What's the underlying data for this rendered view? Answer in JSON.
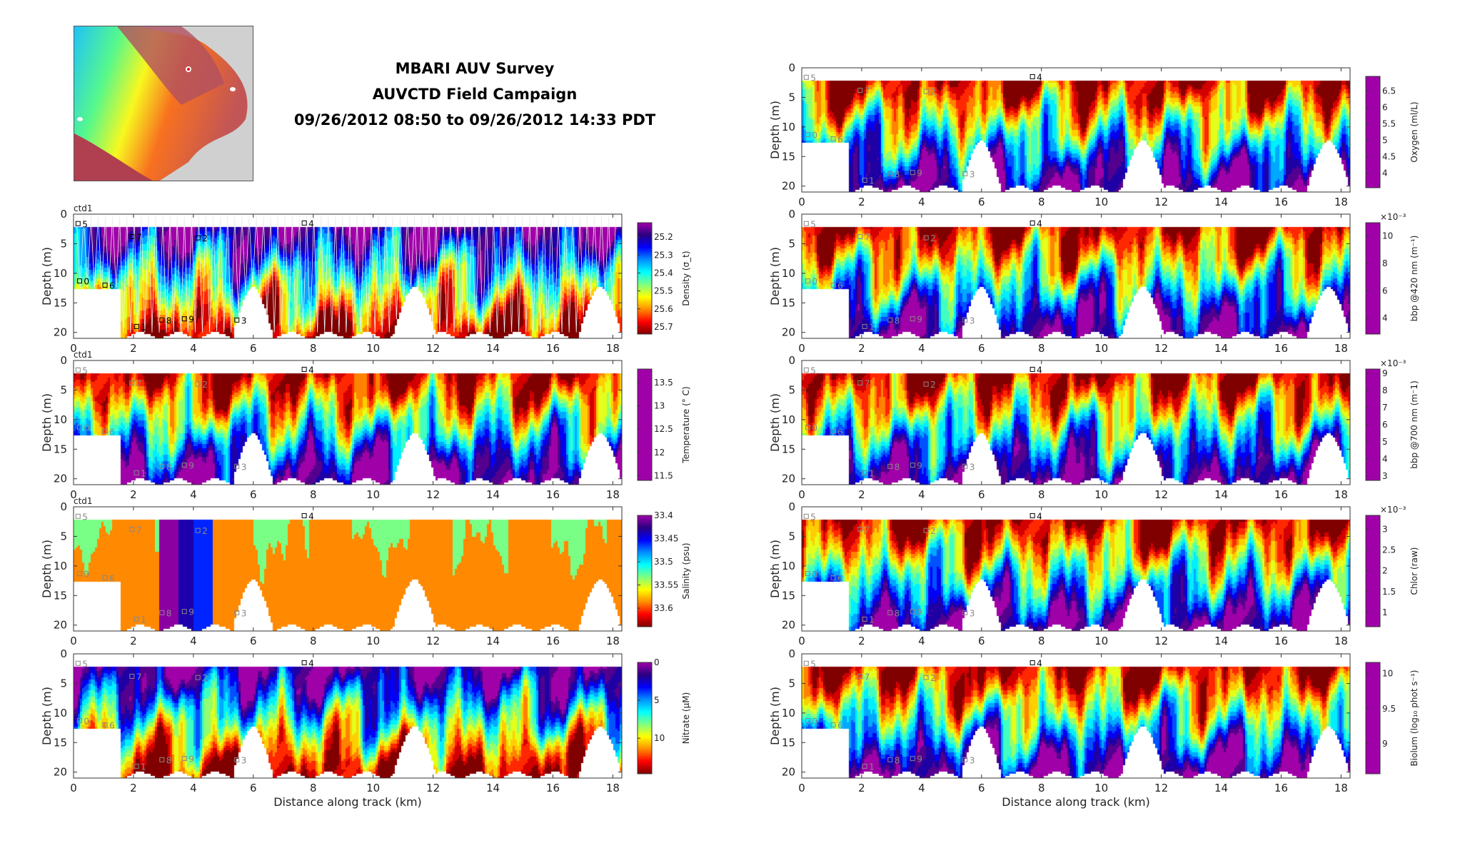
{
  "header": {
    "line1": "MBARI AUV Survey",
    "line2": "AUVCTD Field Campaign",
    "line3": "09/26/2012 08:50 to 09/26/2012 14:33 PDT"
  },
  "ctd_label": "ctd1",
  "chart_data": [
    {
      "id": "density",
      "type": "heatmap",
      "colorbar_label": "Density (σ_t)",
      "clim": [
        25.12,
        25.74
      ],
      "reverse": true,
      "cbar_ticks": [
        25.2,
        25.3,
        25.4,
        25.5,
        25.6,
        25.7
      ],
      "cbar_tick_labels": [
        "25.2",
        "25.3",
        "25.4",
        "25.5",
        "25.6",
        "25.7"
      ],
      "exponent": "",
      "ylabel": "Depth (m)",
      "xlabel": "",
      "show_ctd": true
    },
    {
      "id": "temperature",
      "type": "heatmap",
      "colorbar_label": "Temperature (° C)",
      "clim": [
        11.4,
        13.79
      ],
      "reverse": false,
      "cbar_ticks": [
        13.5,
        13,
        12.5,
        12,
        11.5
      ],
      "cbar_tick_labels": [
        "13.5",
        "13",
        "12.5",
        "12",
        "11.5"
      ],
      "exponent": "",
      "ylabel": "Depth (m)",
      "xlabel": "",
      "show_ctd": true
    },
    {
      "id": "salinity",
      "type": "heatmap",
      "colorbar_label": "Salinity (psu)",
      "clim": [
        33.4,
        33.64
      ],
      "reverse": true,
      "cbar_ticks": [
        33.4,
        33.45,
        33.5,
        33.55,
        33.6
      ],
      "cbar_tick_labels": [
        "33.4",
        "33.45",
        "33.5",
        "33.55",
        "33.6"
      ],
      "exponent": "",
      "ylabel": "Depth (m)",
      "xlabel": "",
      "show_ctd": true
    },
    {
      "id": "nitrate",
      "type": "heatmap",
      "colorbar_label": "Nitrate (μM)",
      "clim": [
        0,
        14.7
      ],
      "reverse": true,
      "cbar_ticks": [
        0,
        5,
        10
      ],
      "cbar_tick_labels": [
        "0",
        "5",
        "10"
      ],
      "exponent": "",
      "ylabel": "Depth (m)",
      "xlabel": "Distance along track (km)",
      "show_ctd": false
    },
    {
      "id": "oxygen",
      "type": "heatmap",
      "colorbar_label": "Oxygen (ml/L)",
      "clim": [
        3.56,
        6.94
      ],
      "reverse": false,
      "cbar_ticks": [
        6.5,
        6,
        5.5,
        5,
        4.5,
        4
      ],
      "cbar_tick_labels": [
        "6.5",
        "6",
        "5.5",
        "5",
        "4.5",
        "4"
      ],
      "exponent": "",
      "ylabel": "Depth (m)",
      "xlabel": "",
      "show_ctd": false
    },
    {
      "id": "bbp420",
      "type": "heatmap",
      "colorbar_label": "bbp @420 nm (m⁻¹)",
      "clim": [
        2.84,
        10.97
      ],
      "reverse": false,
      "cbar_ticks": [
        10,
        8,
        6,
        4
      ],
      "cbar_tick_labels": [
        "10",
        "8",
        "6",
        "4"
      ],
      "exponent": "×10⁻³",
      "ylabel": "Depth (m)",
      "xlabel": "",
      "show_ctd": false
    },
    {
      "id": "bbp700",
      "type": "heatmap",
      "colorbar_label": "bbp @700 nm (m⁻1)",
      "clim": [
        2.74,
        9.26
      ],
      "reverse": false,
      "cbar_ticks": [
        9,
        8,
        7,
        6,
        5,
        4,
        3
      ],
      "cbar_tick_labels": [
        "9",
        "8",
        "7",
        "6",
        "5",
        "4",
        "3"
      ],
      "exponent": "×10⁻³",
      "ylabel": "Depth (m)",
      "xlabel": "",
      "show_ctd": false
    },
    {
      "id": "chlor",
      "type": "heatmap",
      "colorbar_label": "Chlor (raw)",
      "clim": [
        0.66,
        3.33
      ],
      "reverse": false,
      "cbar_ticks": [
        3,
        2.5,
        2,
        1.5,
        1
      ],
      "cbar_tick_labels": [
        "3",
        "2.5",
        "2",
        "1.5",
        "1"
      ],
      "exponent": "×10⁻³",
      "ylabel": "Depth (m)",
      "xlabel": "",
      "show_ctd": false
    },
    {
      "id": "biolum",
      "type": "heatmap",
      "colorbar_label": "Biolum (log₁₀ phot s⁻¹)",
      "clim": [
        8.57,
        10.16
      ],
      "reverse": false,
      "cbar_ticks": [
        10,
        9.5,
        9
      ],
      "cbar_tick_labels": [
        "10",
        "9.5",
        "9"
      ],
      "exponent": "",
      "ylabel": "Depth (m)",
      "xlabel": "Distance along track (km)",
      "show_ctd": false
    }
  ],
  "axes": {
    "xlim": [
      0,
      18.3
    ],
    "ylim": [
      0,
      21
    ],
    "xticks": [
      0,
      2,
      4,
      6,
      8,
      10,
      12,
      14,
      16,
      18
    ],
    "xtick_labels": [
      "0",
      "2",
      "4",
      "6",
      "8",
      "10",
      "12",
      "14",
      "16",
      "18"
    ],
    "yticks": [
      0,
      5,
      10,
      15,
      20
    ],
    "ytick_labels": [
      "0",
      "5",
      "10",
      "15",
      "20"
    ]
  },
  "waypoints": [
    {
      "label": "5",
      "x": 0.15,
      "depth": 1.6
    },
    {
      "label": "0",
      "x": 0.2,
      "depth": 11.3
    },
    {
      "label": "6",
      "x": 1.05,
      "depth": 12
    },
    {
      "label": "7",
      "x": 1.95,
      "depth": 3.8
    },
    {
      "label": "1",
      "x": 2.1,
      "depth": 19
    },
    {
      "label": "8",
      "x": 2.95,
      "depth": 17.9
    },
    {
      "label": "9",
      "x": 3.7,
      "depth": 17.7
    },
    {
      "label": "2",
      "x": 4.15,
      "depth": 4
    },
    {
      "label": "3",
      "x": 5.45,
      "depth": 17.9
    },
    {
      "label": "4",
      "x": 7.7,
      "depth": 1.5
    }
  ],
  "colors": {
    "stops": [
      "#a000a8",
      "#2a0080",
      "#0000ff",
      "#0090ff",
      "#00ffff",
      "#80ff80",
      "#ffff00",
      "#ff8c00",
      "#ff0000",
      "#800000"
    ]
  }
}
